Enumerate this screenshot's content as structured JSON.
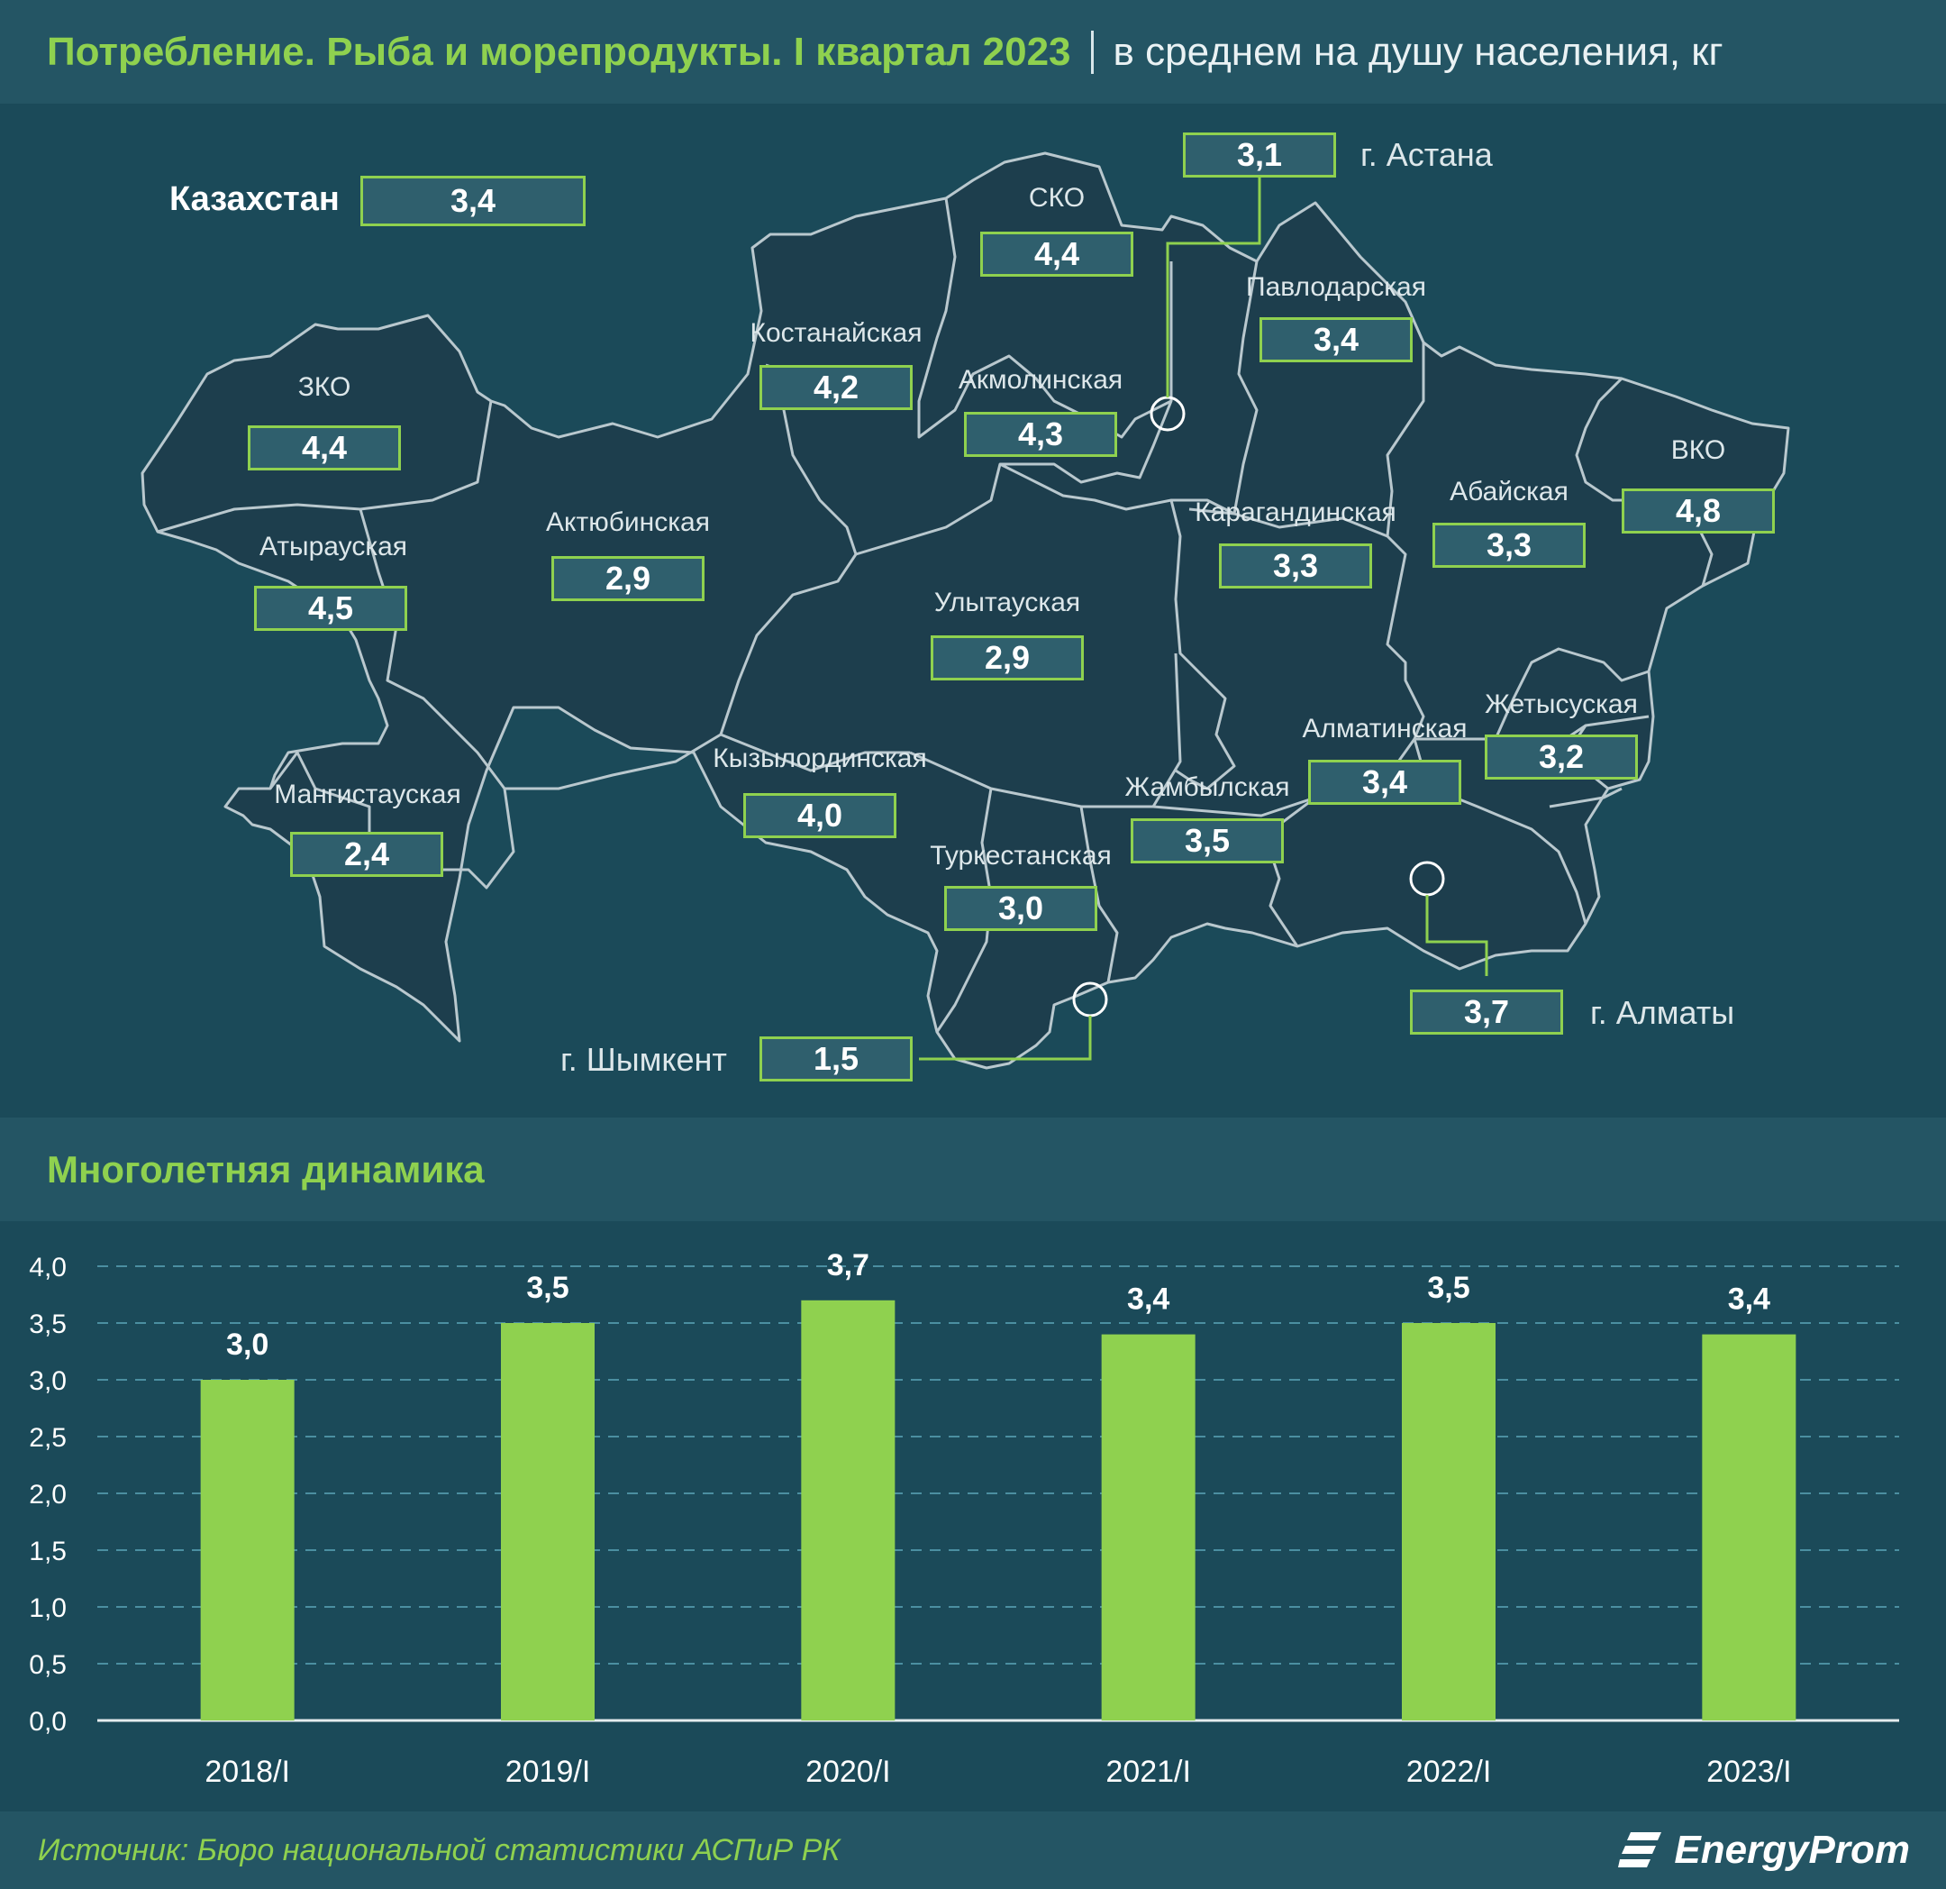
{
  "header": {
    "title": "Потребление. Рыба и морепродукты. I квартал 2023",
    "subtitle": "в среднем на душу населения, кг"
  },
  "country": {
    "label": "Казахстан",
    "value": "3,4"
  },
  "regions": [
    {
      "name": "ЗКО",
      "value": "4,4"
    },
    {
      "name": "Атырауская",
      "value": "4,5"
    },
    {
      "name": "Мангистауская",
      "value": "2,4"
    },
    {
      "name": "Актюбинская",
      "value": "2,9"
    },
    {
      "name": "Костанайская",
      "value": "4,2"
    },
    {
      "name": "СКО",
      "value": "4,4"
    },
    {
      "name": "Акмолинская",
      "value": "4,3"
    },
    {
      "name": "Павлодарская",
      "value": "3,4"
    },
    {
      "name": "Карагандинская",
      "value": "3,3"
    },
    {
      "name": "Улытауская",
      "value": "2,9"
    },
    {
      "name": "Кызылординская",
      "value": "4,0"
    },
    {
      "name": "Туркестанская",
      "value": "3,0"
    },
    {
      "name": "Жамбылская",
      "value": "3,5"
    },
    {
      "name": "Алматинская",
      "value": "3,4"
    },
    {
      "name": "Жетысуская",
      "value": "3,2"
    },
    {
      "name": "Абайская",
      "value": "3,3"
    },
    {
      "name": "ВКО",
      "value": "4,8"
    }
  ],
  "cities": [
    {
      "name": "г. Астана",
      "value": "3,1"
    },
    {
      "name": "г. Алматы",
      "value": "3,7"
    },
    {
      "name": "г. Шымкент",
      "value": "1,5"
    }
  ],
  "dynamics": {
    "title": "Многолетняя динамика"
  },
  "chart_data": {
    "type": "bar",
    "categories": [
      "2018/I",
      "2019/I",
      "2020/I",
      "2021/I",
      "2022/I",
      "2023/I"
    ],
    "values": [
      3.0,
      3.5,
      3.7,
      3.4,
      3.5,
      3.4
    ],
    "value_labels": [
      "3,0",
      "3,5",
      "3,7",
      "3,4",
      "3,5",
      "3,4"
    ],
    "ylim": [
      0,
      4
    ],
    "yticks": [
      "0,0",
      "0,5",
      "1,0",
      "1,5",
      "2,0",
      "2,5",
      "3,0",
      "3,5",
      "4,0"
    ],
    "grid": true,
    "bar_color": "#8fd14f"
  },
  "footer": {
    "source": "Источник: Бюро национальной статистики АСПиР РК",
    "logo": "EnergyProm"
  }
}
